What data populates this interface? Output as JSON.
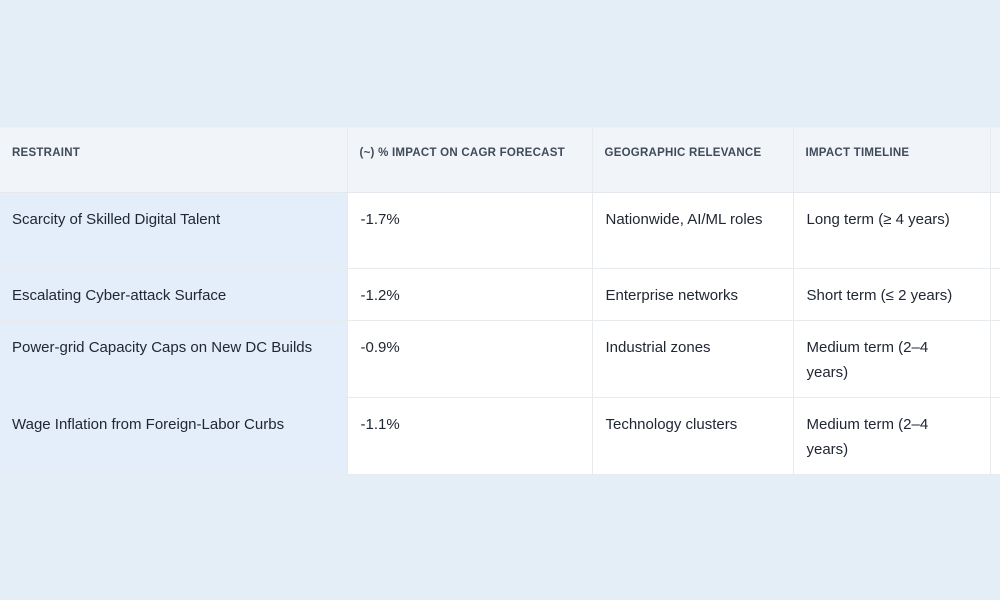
{
  "chart_data": {
    "type": "table",
    "columns": [
      "RESTRAINT",
      "(~) % IMPACT ON CAGR FORECAST",
      "GEOGRAPHIC RELEVANCE",
      "IMPACT TIMELINE"
    ],
    "rows": [
      [
        "Scarcity of Skilled Digital Talent",
        "-1.7%",
        "Nationwide, AI/ML roles",
        "Long term (≥ 4 years)"
      ],
      [
        "Escalating Cyber-attack Surface",
        "-1.2%",
        "Enterprise networks",
        "Short term (≤ 2 years)"
      ],
      [
        "Power-grid Capacity Caps on New DC Builds",
        "-0.9%",
        "Industrial zones",
        "Medium term (2–4 years)"
      ],
      [
        "Wage Inflation from Foreign-Labor Curbs",
        "-1.1%",
        "Technology clusters",
        "Medium term (2–4 years)"
      ]
    ],
    "title": "",
    "legend_position": "none",
    "grid": "on"
  },
  "colors": {
    "page_background": "#e4eef6",
    "header_background": "#f1f4f9",
    "first_column_background": "#e3eefa",
    "cell_background": "#ffffff",
    "border": "#e8ebee",
    "header_text": "#404b59",
    "body_text": "#212733"
  }
}
